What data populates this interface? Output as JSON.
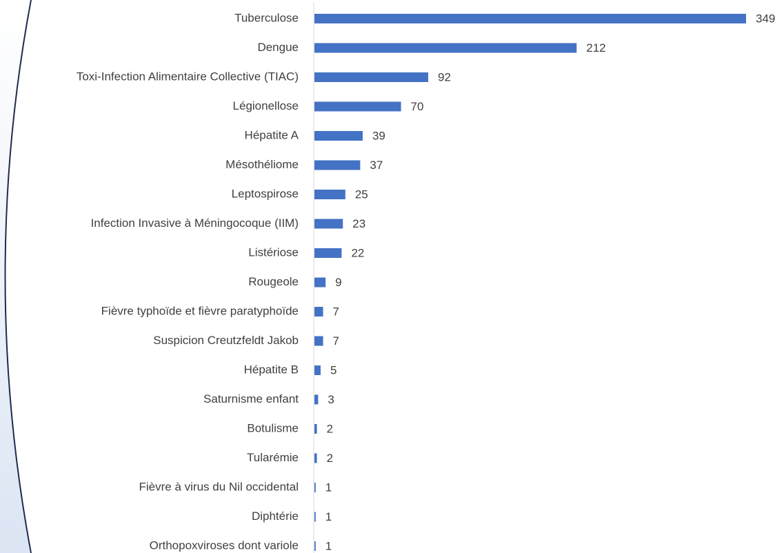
{
  "chart_data": {
    "type": "barh",
    "categories": [
      "Tuberculose",
      "Dengue",
      "Toxi-Infection Alimentaire Collective (TIAC)",
      "Légionellose",
      "Hépatite A",
      "Mésothéliome",
      "Leptospirose",
      "Infection Invasive à Méningocoque (IIM)",
      "Listériose",
      "Rougeole",
      "Fièvre typhoïde et fièvre paratyphoïde",
      "Suspicion Creutzfeldt Jakob",
      "Hépatite B",
      "Saturnisme enfant",
      "Botulisme",
      "Tularémie",
      "Fièvre à virus du Nil occidental",
      "Diphtérie",
      "Orthopoxviroses dont variole"
    ],
    "values": [
      349,
      212,
      92,
      70,
      39,
      37,
      25,
      23,
      22,
      9,
      7,
      7,
      5,
      3,
      2,
      2,
      1,
      1,
      1
    ],
    "color": "#4472c4"
  }
}
